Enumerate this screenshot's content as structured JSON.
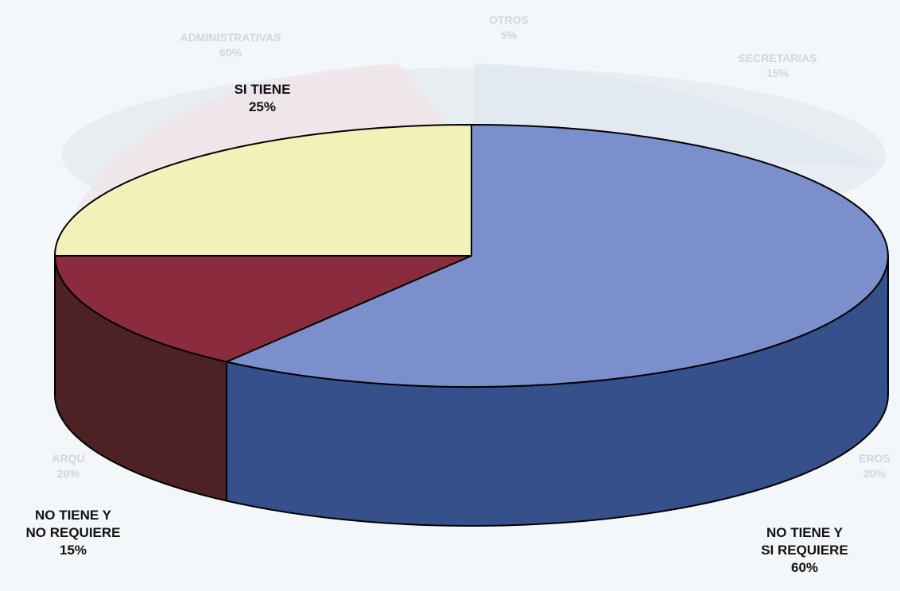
{
  "chart_data": {
    "type": "pie",
    "style": "3d",
    "slices": [
      {
        "label_lines": [
          "NO TIENE Y",
          "SI REQUIERE"
        ],
        "value": 60,
        "value_text": "60%",
        "top_color": "#7b8fcc",
        "side_color": "#35508a"
      },
      {
        "label_lines": [
          "NO TIENE Y",
          "NO REQUIERE"
        ],
        "value": 15,
        "value_text": "15%",
        "top_color": "#8a2c3e",
        "side_color": "#4e2224"
      },
      {
        "label_lines": [
          "SI TIENE"
        ],
        "value": 25,
        "value_text": "25%",
        "top_color": "#f2f1b8",
        "side_color": "#c9c79a"
      }
    ],
    "ghost_background_labels": [
      {
        "lines": [
          "ADMINISTRATIVAS",
          "60%"
        ]
      },
      {
        "lines": [
          "OTROS",
          "5%"
        ]
      },
      {
        "lines": [
          "SECRETARIAS",
          "15%"
        ]
      },
      {
        "lines": [
          "ARQU",
          "20%"
        ]
      },
      {
        "lines": [
          "EROS",
          "20%"
        ]
      }
    ],
    "legend": "none",
    "grid": false
  }
}
